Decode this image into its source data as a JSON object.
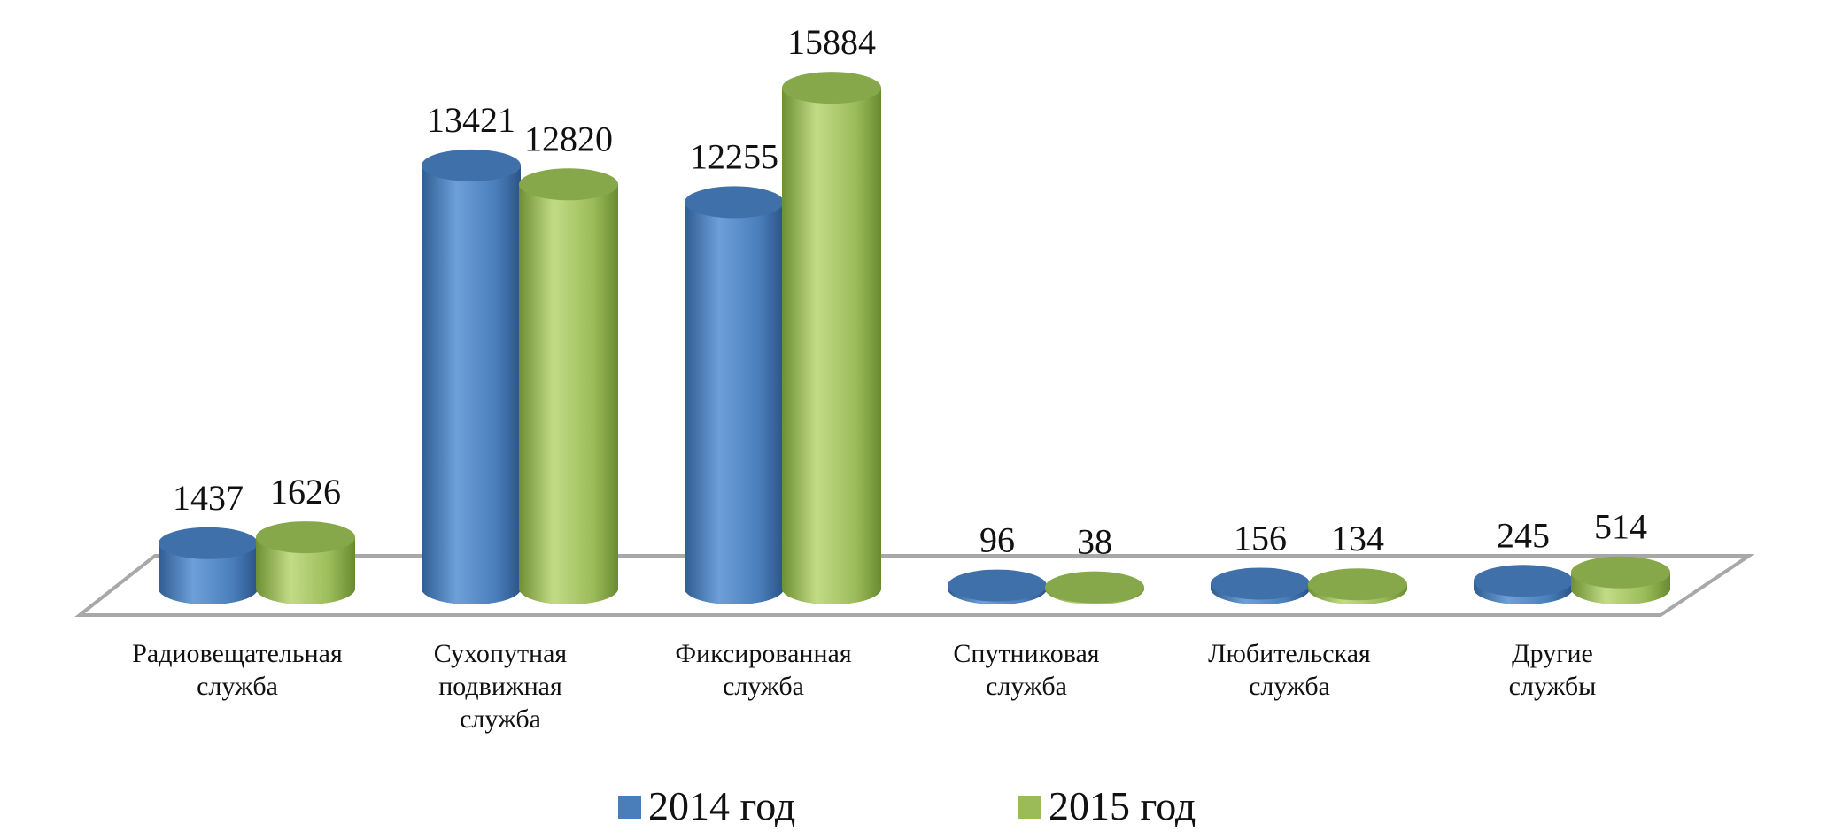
{
  "chart_data": {
    "type": "bar",
    "style": "3d-cylinder",
    "categories": [
      [
        "Радиовещательная",
        "служба"
      ],
      [
        "Сухопутная",
        "подвижная",
        "служба"
      ],
      [
        "Фиксированная",
        "служба"
      ],
      [
        "Спутниковая",
        "служба"
      ],
      [
        "Любительская",
        "служба"
      ],
      [
        "Другие",
        "службы"
      ]
    ],
    "series": [
      {
        "name": "2014 год",
        "color": "#4a7ebb",
        "values": [
          1437,
          13421,
          12255,
          96,
          156,
          245
        ]
      },
      {
        "name": "2015 год",
        "color": "#9bbb59",
        "values": [
          1626,
          12820,
          15884,
          38,
          134,
          514
        ]
      }
    ],
    "ylim": [
      0,
      16000
    ],
    "grid": false,
    "legend": "bottom"
  }
}
